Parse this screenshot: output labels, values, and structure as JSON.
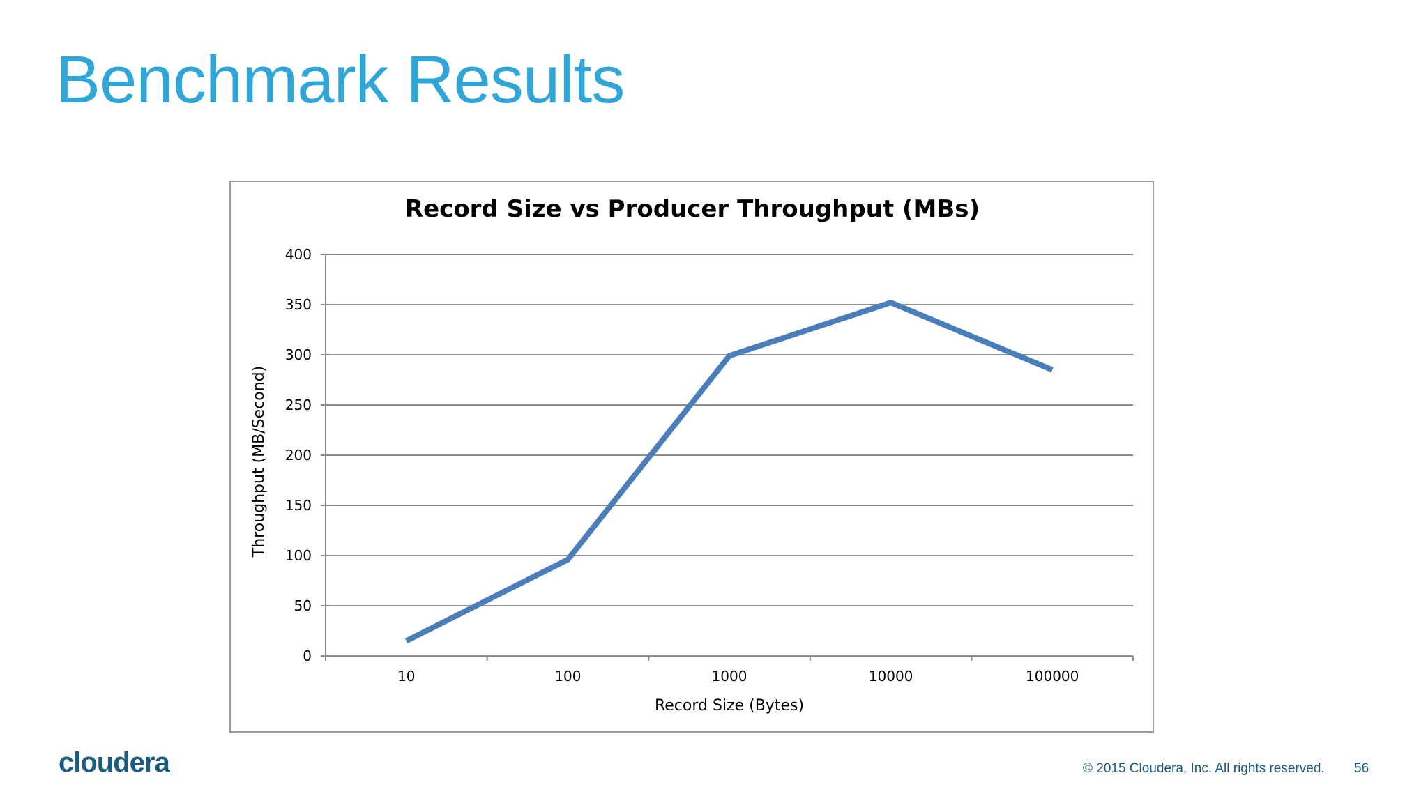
{
  "slide": {
    "title": "Benchmark Results",
    "brand": "cloudera",
    "copyright": "© 2015 Cloudera, Inc. All rights reserved.",
    "page_number": "56"
  },
  "colors": {
    "title": "#2fa5d8",
    "series_line": "#4a7ebb",
    "gridline": "#8c8c8c",
    "footer": "#1b5c7e"
  },
  "chart_data": {
    "type": "line",
    "title": "Record Size vs Producer Throughput (MBs)",
    "xlabel": "Record Size (Bytes)",
    "ylabel": "Throughput (MB/Second)",
    "categories": [
      "10",
      "100",
      "1000",
      "10000",
      "100000"
    ],
    "series": [
      {
        "values": [
          15,
          96,
          299,
          352,
          285
        ]
      }
    ],
    "ylim": [
      0,
      400
    ],
    "yticks": [
      0,
      50,
      100,
      150,
      200,
      250,
      300,
      350,
      400
    ],
    "grid": true,
    "legend": "none"
  }
}
